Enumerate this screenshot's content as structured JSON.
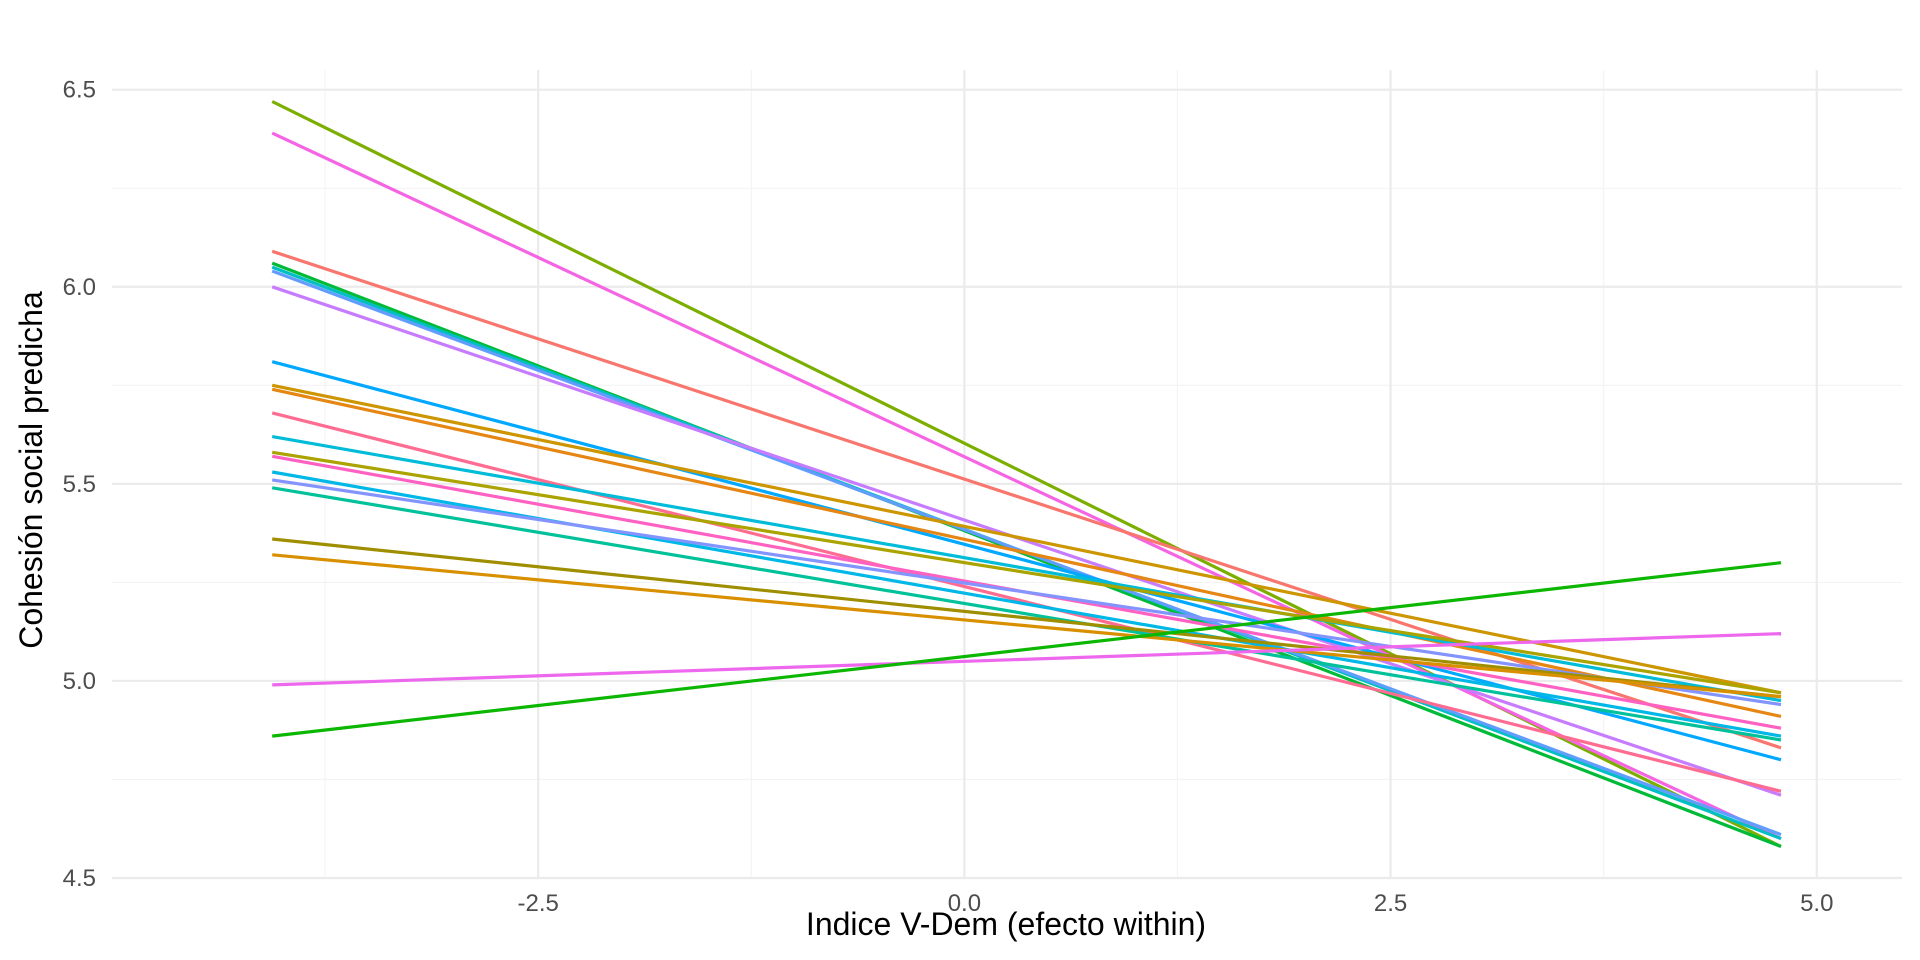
{
  "chart_data": {
    "type": "line",
    "xlabel": "Indice V-Dem (efecto within)",
    "ylabel": "Cohesión social predicha",
    "xlim": [
      -5.0,
      5.5
    ],
    "ylim": [
      4.5,
      6.55
    ],
    "xticks": [
      -2.5,
      0.0,
      2.5,
      5.0
    ],
    "xtick_labels": [
      "-2.5",
      "0.0",
      "2.5",
      "5.0"
    ],
    "yticks": [
      4.5,
      5.0,
      5.5,
      6.0,
      6.5
    ],
    "ytick_labels": [
      "4.5",
      "5.0",
      "5.5",
      "6.0",
      "6.5"
    ],
    "grid": true,
    "legend": "none",
    "series": [
      {
        "color": "#7CAE00",
        "x": [
          -4.06,
          4.79
        ],
        "y": [
          6.47,
          4.58
        ]
      },
      {
        "color": "#F564E3",
        "x": [
          -4.06,
          4.79
        ],
        "y": [
          6.39,
          4.6
        ]
      },
      {
        "color": "#F8766D",
        "x": [
          -4.06,
          4.79
        ],
        "y": [
          6.09,
          4.83
        ]
      },
      {
        "color": "#00BA38",
        "x": [
          -4.06,
          4.79
        ],
        "y": [
          6.06,
          4.58
        ]
      },
      {
        "color": "#00BFC4",
        "x": [
          -4.06,
          4.79
        ],
        "y": [
          6.05,
          4.6
        ]
      },
      {
        "color": "#619CFF",
        "x": [
          -4.06,
          4.79
        ],
        "y": [
          6.04,
          4.61
        ]
      },
      {
        "color": "#C77CFF",
        "x": [
          -4.06,
          4.79
        ],
        "y": [
          6.0,
          4.71
        ]
      },
      {
        "color": "#00A9FF",
        "x": [
          -4.06,
          4.79
        ],
        "y": [
          5.81,
          4.8
        ]
      },
      {
        "color": "#CD9600",
        "x": [
          -4.06,
          4.79
        ],
        "y": [
          5.75,
          4.97
        ]
      },
      {
        "color": "#E68613",
        "x": [
          -4.06,
          4.79
        ],
        "y": [
          5.74,
          4.91
        ]
      },
      {
        "color": "#FF6C91",
        "x": [
          -4.06,
          4.79
        ],
        "y": [
          5.68,
          4.72
        ]
      },
      {
        "color": "#00BCD8",
        "x": [
          -4.06,
          4.79
        ],
        "y": [
          5.62,
          4.95
        ]
      },
      {
        "color": "#ABA300",
        "x": [
          -4.06,
          4.79
        ],
        "y": [
          5.58,
          4.97
        ]
      },
      {
        "color": "#FF61C3",
        "x": [
          -4.06,
          4.79
        ],
        "y": [
          5.57,
          4.88
        ]
      },
      {
        "color": "#00B8E7",
        "x": [
          -4.06,
          4.79
        ],
        "y": [
          5.53,
          4.86
        ]
      },
      {
        "color": "#8494FF",
        "x": [
          -4.06,
          4.79
        ],
        "y": [
          5.51,
          4.94
        ]
      },
      {
        "color": "#00C19A",
        "x": [
          -4.06,
          4.79
        ],
        "y": [
          5.49,
          4.85
        ]
      },
      {
        "color": "#9F8F00",
        "x": [
          -4.06,
          4.79
        ],
        "y": [
          5.36,
          4.96
        ]
      },
      {
        "color": "#D89000",
        "x": [
          -4.06,
          4.79
        ],
        "y": [
          5.32,
          4.96
        ]
      },
      {
        "color": "#ED68ED",
        "x": [
          -4.06,
          4.79
        ],
        "y": [
          4.99,
          5.12
        ]
      },
      {
        "color": "#0CB702",
        "x": [
          -4.06,
          4.79
        ],
        "y": [
          4.86,
          5.3
        ]
      }
    ]
  }
}
